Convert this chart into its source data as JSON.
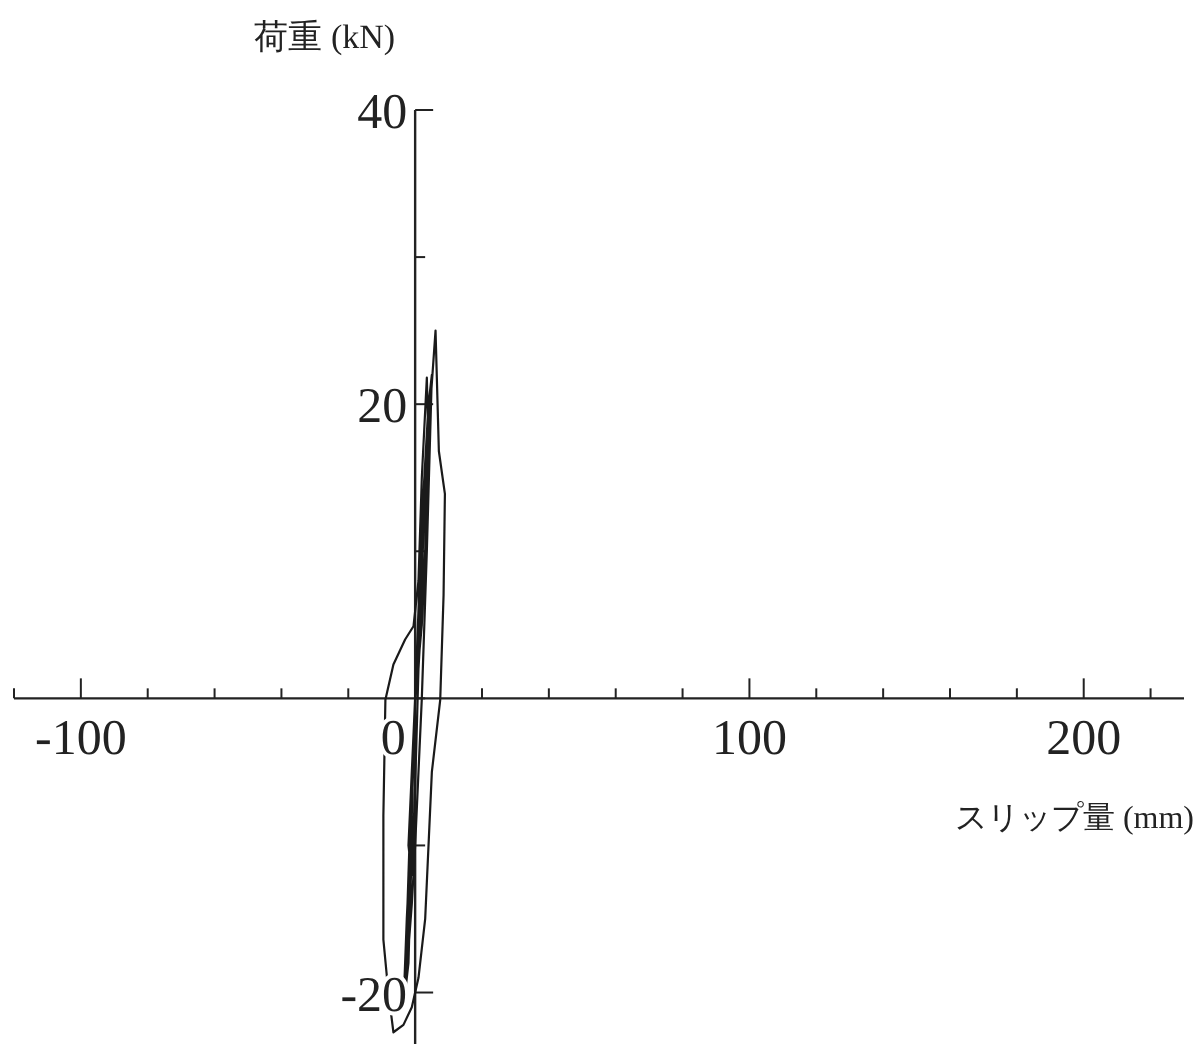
{
  "chart_data": {
    "type": "line",
    "xlabel": "スリップ量 (mm)",
    "ylabel": "荷重 (kN)",
    "xlim": [
      -120,
      230
    ],
    "ylim": [
      -23.5,
      40
    ],
    "xticks": [
      {
        "value": -120,
        "label": null
      },
      -100,
      {
        "value": -80,
        "label": null
      },
      {
        "value": -60,
        "label": null
      },
      {
        "value": -40,
        "label": null
      },
      {
        "value": -20,
        "label": null
      },
      0,
      {
        "value": 20,
        "label": null
      },
      {
        "value": 40,
        "label": null
      },
      {
        "value": 60,
        "label": null
      },
      {
        "value": 80,
        "label": null
      },
      100,
      {
        "value": 120,
        "label": null
      },
      {
        "value": 140,
        "label": null
      },
      {
        "value": 160,
        "label": null
      },
      {
        "value": 180,
        "label": null
      },
      200,
      {
        "value": 220,
        "label": null
      }
    ],
    "yticks": [
      {
        "value": -20,
        "label": "-20"
      },
      {
        "value": -10,
        "label": null
      },
      {
        "value": 0,
        "label": null
      },
      {
        "value": 10,
        "label": null
      },
      20,
      {
        "value": 30,
        "label": null
      },
      40
    ],
    "marker": "none",
    "series": [
      {
        "color": "#1a1a1a",
        "x": [
          0,
          1,
          2,
          3,
          2,
          1,
          0,
          -1,
          -2,
          -1,
          0,
          1,
          3,
          4,
          3,
          2,
          1,
          0,
          -1,
          -2,
          -3,
          -2,
          -1,
          0,
          1,
          2,
          4,
          5,
          4.5,
          3.5,
          2,
          1,
          0,
          -1,
          -2,
          -3,
          -3.5,
          -2.5,
          -1,
          0,
          1,
          3,
          6.1,
          7.1,
          8.9,
          8.5,
          7.5,
          5,
          3,
          1,
          -1,
          -3.5,
          -6.5,
          -8,
          -9.5,
          -9.5,
          -8.9,
          -6.5,
          -3,
          -0.5,
          1,
          2,
          3.5,
          4,
          3.5,
          2,
          0,
          -1,
          -2,
          -3,
          -2,
          -1
        ],
        "values": [
          0,
          5,
          10,
          15,
          12,
          6,
          0,
          -5,
          -10,
          -12,
          -6,
          2,
          10,
          20,
          15,
          8,
          3,
          0,
          -6,
          -12,
          -19,
          -16,
          -8,
          0,
          6,
          12,
          20,
          22,
          18,
          10,
          0,
          -5,
          -10,
          -14,
          -17,
          -20,
          -21,
          -15,
          -8,
          0,
          5,
          15,
          25,
          16.8,
          13.9,
          7,
          -0.1,
          -5,
          -15,
          -19,
          -21,
          -22.2,
          -22.7,
          -20,
          -16.4,
          -8,
          -0.1,
          2.3,
          4,
          4.9,
          8,
          15,
          21.8,
          17,
          12,
          5,
          0,
          -5,
          -12,
          -20,
          -18,
          -10
        ]
      }
    ]
  }
}
